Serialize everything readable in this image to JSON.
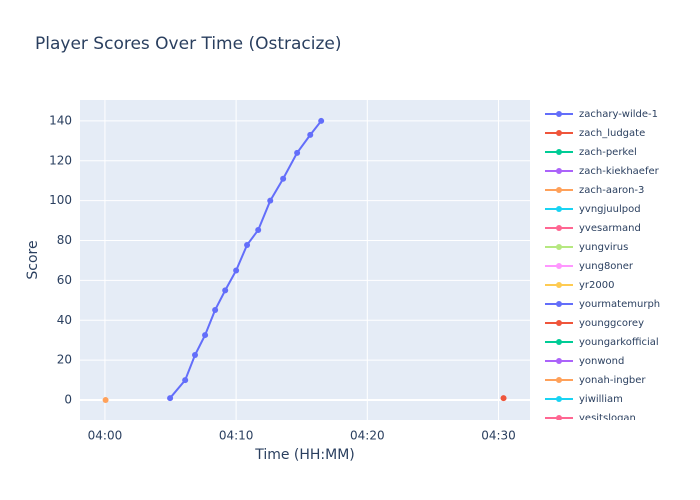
{
  "chart_data": {
    "type": "line",
    "title": "Player Scores Over Time (Ostracize)",
    "x_label": "Time (HH:MM)",
    "y_label": "Score",
    "xlim": [
      "03:58:06",
      "04:32:24"
    ],
    "xticks": [
      "04:00",
      "04:10",
      "04:20",
      "04:30"
    ],
    "ylim": [
      -10,
      150.5
    ],
    "yticks": [
      0,
      20,
      40,
      60,
      80,
      100,
      120,
      140
    ],
    "grid": true,
    "series": [
      {
        "name": "zachary-wilde-1",
        "color": "#636efa",
        "x": [
          "04:04:58",
          "04:06:07",
          "04:06:52",
          "04:07:38",
          "04:08:24",
          "04:09:10",
          "04:10:00",
          "04:10:50",
          "04:11:41",
          "04:12:36",
          "04:13:35",
          "04:14:39",
          "04:15:39",
          "04:16:29"
        ],
        "values": [
          1,
          10,
          22.6,
          32.6,
          45.2,
          55,
          65,
          77.8,
          85.3,
          100,
          111,
          124,
          133,
          140
        ]
      },
      {
        "name": "zach_ludgate",
        "color": "#EF553B",
        "x": [
          "04:30:23"
        ],
        "values": [
          1
        ]
      },
      {
        "name": "zach-perkel",
        "color": "#00cc96",
        "x": [],
        "values": []
      },
      {
        "name": "zach-kiekhaefer",
        "color": "#ab63fa",
        "x": [],
        "values": []
      },
      {
        "name": "zach-aaron-3",
        "color": "#FFA15A",
        "x": [
          "04:00:03"
        ],
        "values": [
          0
        ]
      },
      {
        "name": "yvngjuulpod",
        "color": "#19d3f3",
        "x": [],
        "values": []
      },
      {
        "name": "yvesarmand",
        "color": "#FF6692",
        "x": [],
        "values": []
      },
      {
        "name": "yungvirus",
        "color": "#B6E880",
        "x": [],
        "values": []
      },
      {
        "name": "yung8oner",
        "color": "#FF97FF",
        "x": [],
        "values": []
      },
      {
        "name": "yr2000",
        "color": "#FECB52",
        "x": [],
        "values": []
      },
      {
        "name": "yourmatemurph",
        "color": "#636efa",
        "x": [],
        "values": []
      },
      {
        "name": "younggcorey",
        "color": "#EF553B",
        "x": [],
        "values": []
      },
      {
        "name": "youngarkofficial",
        "color": "#00cc96",
        "x": [],
        "values": []
      },
      {
        "name": "yonwond",
        "color": "#ab63fa",
        "x": [],
        "values": []
      },
      {
        "name": "yonah-ingber",
        "color": "#FFA15A",
        "x": [],
        "values": []
      },
      {
        "name": "yiwilliam",
        "color": "#19d3f3",
        "x": [],
        "values": []
      },
      {
        "name": "yesitslogan",
        "color": "#FF6692",
        "x": [],
        "values": []
      }
    ]
  }
}
